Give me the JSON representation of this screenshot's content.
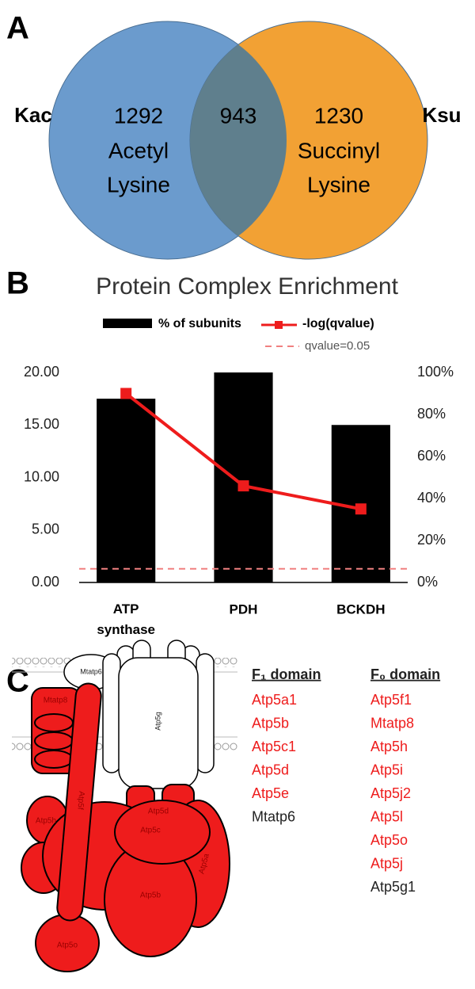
{
  "panel_labels": [
    "A",
    "B",
    "C"
  ],
  "chart_data": [
    {
      "type": "venn",
      "sets": [
        {
          "name": "Kac",
          "label_lines": [
            "Acetyl",
            "Lysine"
          ],
          "value": 1292,
          "color": "#6b9bcd"
        },
        {
          "name": "Ksu",
          "label_lines": [
            "Succinyl",
            "Lysine"
          ],
          "value": 1230,
          "color": "#f2a134"
        }
      ],
      "overlap": {
        "value": 943,
        "color": "#5f7f8d"
      }
    },
    {
      "type": "bar",
      "title": "Protein Complex Enrichment",
      "categories": [
        "ATP synthase",
        "PDH",
        "BCKDH"
      ],
      "series": [
        {
          "name": "% of subunits",
          "color": "#000000",
          "values": [
            17.5,
            20,
            15
          ]
        },
        {
          "name": "-log(qvalue)",
          "color": "#ee1c1c",
          "type": "line",
          "axis": "y2",
          "values": [
            90,
            46,
            35
          ]
        }
      ],
      "reference_line": {
        "name": "qvalue=0.05",
        "value": 1.3,
        "color": "#f08080"
      },
      "ylim": [
        0,
        20
      ],
      "yticks": [
        {
          "value": 0,
          "label": "0.00"
        },
        {
          "value": 5,
          "label": "5.00"
        },
        {
          "value": 10,
          "label": "10.00"
        },
        {
          "value": 15,
          "label": "15.00"
        },
        {
          "value": 20,
          "label": "20.00"
        }
      ],
      "y2lim": [
        0,
        100
      ],
      "y2ticks": [
        {
          "value": 0,
          "label": "0%"
        },
        {
          "value": 20,
          "label": "20%"
        },
        {
          "value": 40,
          "label": "40%"
        },
        {
          "value": 60,
          "label": "60%"
        },
        {
          "value": 80,
          "label": "80%"
        },
        {
          "value": 100,
          "label": "100%"
        }
      ]
    }
  ],
  "diagram": {
    "subunit_labels": [
      "Mtatp6",
      "Mtatp8",
      "Atp5g",
      "Atp5f",
      "Atp5h",
      "Atp5d",
      "Atp5c",
      "Atp5b",
      "Atp5a",
      "Atp5o"
    ],
    "lists": [
      {
        "heading": "F₁ domain",
        "items": [
          {
            "text": "Atp5a1",
            "color": "#ee1c1c"
          },
          {
            "text": "Atp5b",
            "color": "#ee1c1c"
          },
          {
            "text": "Atp5c1",
            "color": "#ee1c1c"
          },
          {
            "text": "Atp5d",
            "color": "#ee1c1c"
          },
          {
            "text": "Atp5e",
            "color": "#ee1c1c"
          },
          {
            "text": "Mtatp6",
            "color": "#222222"
          }
        ]
      },
      {
        "heading": "F₀ domain",
        "items": [
          {
            "text": "Atp5f1",
            "color": "#ee1c1c"
          },
          {
            "text": "Mtatp8",
            "color": "#ee1c1c"
          },
          {
            "text": "Atp5h",
            "color": "#ee1c1c"
          },
          {
            "text": "Atp5i",
            "color": "#ee1c1c"
          },
          {
            "text": "Atp5j2",
            "color": "#ee1c1c"
          },
          {
            "text": "Atp5l",
            "color": "#ee1c1c"
          },
          {
            "text": "Atp5o",
            "color": "#ee1c1c"
          },
          {
            "text": "Atp5j",
            "color": "#ee1c1c"
          },
          {
            "text": "Atp5g1",
            "color": "#222222"
          }
        ]
      }
    ]
  }
}
